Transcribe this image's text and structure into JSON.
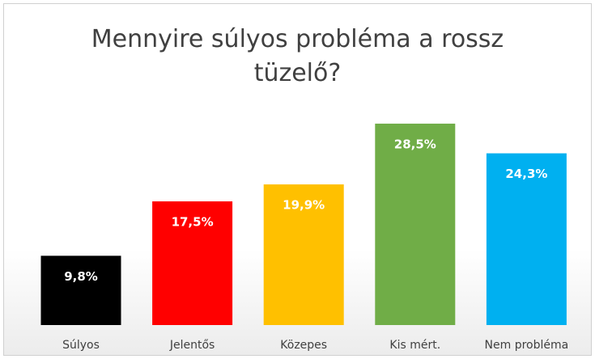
{
  "chart_data": {
    "type": "bar",
    "title": "Mennyire súlyos probléma a rossz tüzelő?",
    "categories": [
      "Súlyos",
      "Jelentős",
      "Közepes",
      "Kis mért.",
      "Nem probléma"
    ],
    "values": [
      9.8,
      17.5,
      19.9,
      28.5,
      24.3
    ],
    "value_labels": [
      "9,8%",
      "17,5%",
      "19,9%",
      "28,5%",
      "24,3%"
    ],
    "colors": [
      "#000000",
      "#ff0000",
      "#ffc000",
      "#70ad47",
      "#00b0f0"
    ]
  }
}
